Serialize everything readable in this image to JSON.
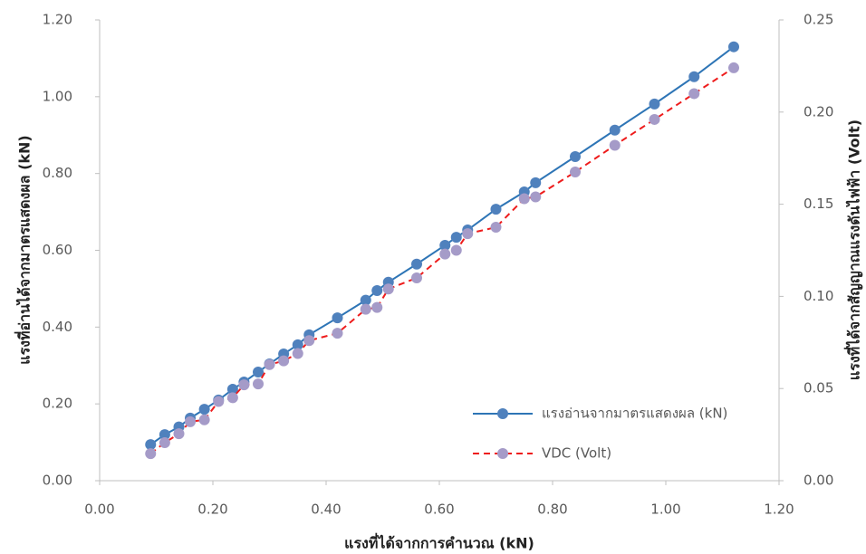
{
  "chart_data": {
    "type": "line",
    "x_label": "แรงที่ได้จากการคำนวณ (kN)",
    "y_label": "แรงที่อ่านได้จากมาตรแสดงผล (kN)",
    "y2_label": "แรงที่ได้จากสัญญาณแรงดันไฟฟ้า (Volt)",
    "x": [
      0.09,
      0.115,
      0.14,
      0.16,
      0.185,
      0.21,
      0.235,
      0.255,
      0.28,
      0.3,
      0.325,
      0.35,
      0.37,
      0.42,
      0.47,
      0.49,
      0.51,
      0.56,
      0.61,
      0.63,
      0.65,
      0.7,
      0.75,
      0.77,
      0.84,
      0.91,
      0.98,
      1.05,
      1.12
    ],
    "series": [
      {
        "name": "แรงอ่านจากมาตรแสดงผล (kN)",
        "color": "#2e75b6",
        "marker_color": "#4f81bd",
        "dash": false,
        "axis": "y",
        "values": [
          0.094,
          0.12,
          0.14,
          0.163,
          0.186,
          0.21,
          0.238,
          0.257,
          0.283,
          0.304,
          0.33,
          0.354,
          0.38,
          0.424,
          0.47,
          0.495,
          0.517,
          0.564,
          0.613,
          0.634,
          0.653,
          0.707,
          0.752,
          0.776,
          0.844,
          0.913,
          0.981,
          1.052,
          1.13
        ]
      },
      {
        "name": "VDC (Volt)",
        "color": "#ee1c1c",
        "marker_color": "#a59bc8",
        "dash": true,
        "axis": "y2",
        "values": [
          0.0147,
          0.0206,
          0.0255,
          0.032,
          0.033,
          0.043,
          0.045,
          0.052,
          0.0525,
          0.063,
          0.065,
          0.069,
          0.076,
          0.08,
          0.093,
          0.094,
          0.104,
          0.11,
          0.123,
          0.125,
          0.134,
          0.1375,
          0.153,
          0.154,
          0.1675,
          0.182,
          0.196,
          0.21,
          0.224
        ]
      }
    ],
    "xlim": [
      0,
      1.2
    ],
    "xticks": [
      {
        "value": 0,
        "label": "0.00"
      },
      {
        "value": 0.2,
        "label": "0.20"
      },
      {
        "value": 0.4,
        "label": "0.40"
      },
      {
        "value": 0.6,
        "label": "0.60"
      },
      {
        "value": 0.8,
        "label": "0.80"
      },
      {
        "value": 1.0,
        "label": "1.00"
      },
      {
        "value": 1.2,
        "label": "1.20"
      }
    ],
    "ylim": [
      0,
      1.2
    ],
    "yticks": [
      {
        "value": 0,
        "label": "0.00"
      },
      {
        "value": 0.2,
        "label": "0.20"
      },
      {
        "value": 0.4,
        "label": "0.40"
      },
      {
        "value": 0.6,
        "label": "0.60"
      },
      {
        "value": 0.8,
        "label": "0.80"
      },
      {
        "value": 1.0,
        "label": "1.00"
      },
      {
        "value": 1.2,
        "label": "1.20"
      }
    ],
    "y2lim": [
      0,
      0.25
    ],
    "y2ticks": [
      {
        "value": 0,
        "label": "0.00"
      },
      {
        "value": 0.05,
        "label": "0.05"
      },
      {
        "value": 0.1,
        "label": "0.10"
      },
      {
        "value": 0.15,
        "label": "0.15"
      },
      {
        "value": 0.2,
        "label": "0.20"
      },
      {
        "value": 0.25,
        "label": "0.25"
      }
    ],
    "legend": "lower right"
  }
}
